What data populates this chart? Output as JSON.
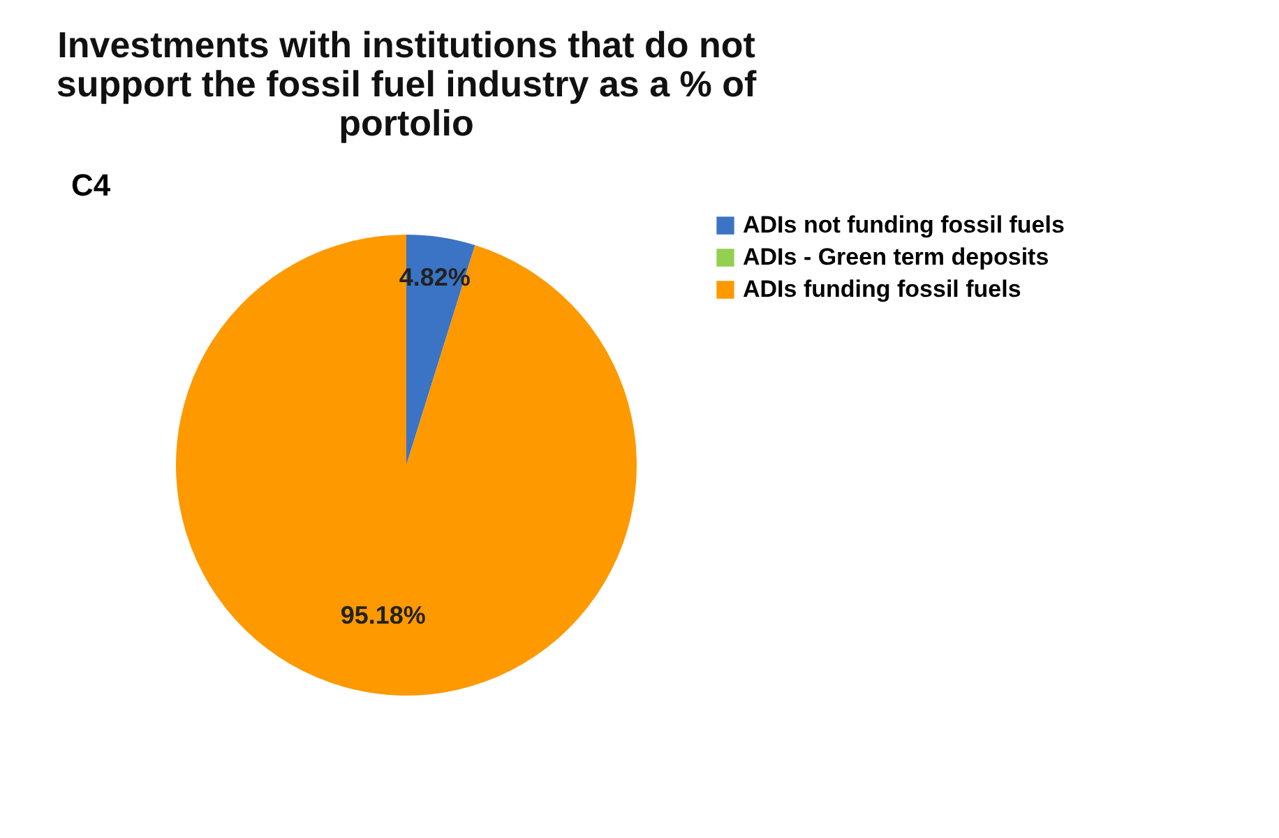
{
  "chart_data": {
    "type": "pie",
    "title": "Investments with institutions that do not support the fossil fuel industry as a % of portolio",
    "categories": [
      "ADIs not funding fossil fuels",
      "ADIs - Green term deposits",
      "ADIs funding fossil fuels"
    ],
    "values": [
      4.82,
      0,
      95.18
    ],
    "colors": [
      "#3b74c4",
      "#92d050",
      "#ff9900"
    ],
    "value_labels": [
      "4.82%",
      null,
      "95.18%"
    ],
    "annotations": [
      "C4"
    ],
    "legend": "right"
  }
}
